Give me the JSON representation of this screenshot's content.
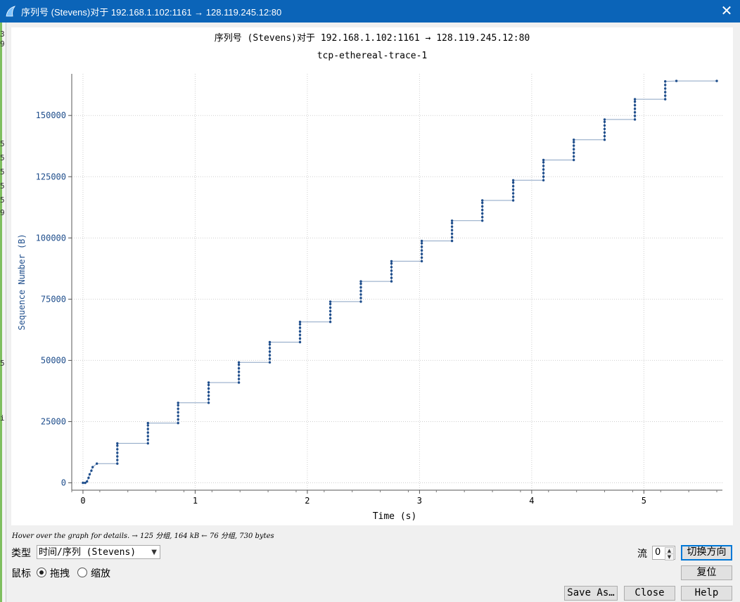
{
  "window": {
    "title": "序列号 (Stevens)对于 192.168.1.102:1161 → 128.119.245.12:80",
    "close_glyph": "✕"
  },
  "left_fragments": [
    "3",
    "9",
    "5",
    "5",
    "5",
    "5",
    "5",
    "9",
    "5",
    "i"
  ],
  "chart_data": {
    "type": "scatter",
    "title": "序列号 (Stevens)对于 192.168.1.102:1161 → 128.119.245.12:80",
    "subtitle": "tcp-ethereal-trace-1",
    "xlabel": "Time (s)",
    "ylabel": "Sequence Number (B)",
    "xlim": [
      -0.1,
      5.7
    ],
    "ylim": [
      -3000,
      167000
    ],
    "xticks": [
      0,
      1,
      2,
      3,
      4,
      5
    ],
    "yticks": [
      0,
      25000,
      50000,
      75000,
      100000,
      125000,
      150000
    ],
    "grid": true,
    "series": [
      {
        "style": "stevens",
        "color": "#1f4e8c",
        "points": [
          [
            0.0,
            0
          ],
          [
            0.02,
            0
          ],
          [
            0.036,
            565
          ],
          [
            0.05,
            2026
          ],
          [
            0.06,
            3486
          ],
          [
            0.075,
            4946
          ],
          [
            0.086,
            6406
          ],
          [
            0.124,
            7866
          ],
          [
            0.306,
            7866
          ],
          [
            0.306,
            9326
          ],
          [
            0.306,
            10786
          ],
          [
            0.306,
            12246
          ],
          [
            0.306,
            13706
          ],
          [
            0.306,
            15166
          ],
          [
            0.306,
            16134
          ],
          [
            0.579,
            16134
          ],
          [
            0.579,
            17594
          ],
          [
            0.579,
            19054
          ],
          [
            0.579,
            20514
          ],
          [
            0.579,
            21974
          ],
          [
            0.579,
            23434
          ],
          [
            0.579,
            24398
          ],
          [
            0.848,
            24398
          ],
          [
            0.848,
            25858
          ],
          [
            0.848,
            27318
          ],
          [
            0.848,
            28778
          ],
          [
            0.848,
            30238
          ],
          [
            0.848,
            31698
          ],
          [
            0.848,
            32662
          ],
          [
            1.12,
            32662
          ],
          [
            1.12,
            34122
          ],
          [
            1.12,
            35582
          ],
          [
            1.12,
            37042
          ],
          [
            1.12,
            38502
          ],
          [
            1.12,
            39962
          ],
          [
            1.12,
            40926
          ],
          [
            1.39,
            40926
          ],
          [
            1.39,
            42386
          ],
          [
            1.39,
            43846
          ],
          [
            1.39,
            45306
          ],
          [
            1.39,
            46766
          ],
          [
            1.39,
            48226
          ],
          [
            1.39,
            49190
          ],
          [
            1.665,
            49190
          ],
          [
            1.665,
            50650
          ],
          [
            1.665,
            52110
          ],
          [
            1.665,
            53570
          ],
          [
            1.665,
            55030
          ],
          [
            1.665,
            56490
          ],
          [
            1.665,
            57454
          ],
          [
            1.935,
            57454
          ],
          [
            1.935,
            58914
          ],
          [
            1.935,
            60374
          ],
          [
            1.935,
            61834
          ],
          [
            1.935,
            63294
          ],
          [
            1.935,
            64754
          ],
          [
            1.935,
            65718
          ],
          [
            2.205,
            65718
          ],
          [
            2.205,
            67178
          ],
          [
            2.205,
            68638
          ],
          [
            2.205,
            70098
          ],
          [
            2.205,
            71558
          ],
          [
            2.205,
            73018
          ],
          [
            2.205,
            73982
          ],
          [
            2.477,
            73982
          ],
          [
            2.477,
            75442
          ],
          [
            2.477,
            76902
          ],
          [
            2.477,
            78362
          ],
          [
            2.477,
            79822
          ],
          [
            2.477,
            81282
          ],
          [
            2.477,
            82246
          ],
          [
            2.75,
            82246
          ],
          [
            2.75,
            83706
          ],
          [
            2.75,
            85166
          ],
          [
            2.75,
            86626
          ],
          [
            2.75,
            88086
          ],
          [
            2.75,
            89546
          ],
          [
            2.75,
            90510
          ],
          [
            3.02,
            90510
          ],
          [
            3.02,
            91970
          ],
          [
            3.02,
            93430
          ],
          [
            3.02,
            94890
          ],
          [
            3.02,
            96350
          ],
          [
            3.02,
            97810
          ],
          [
            3.02,
            98774
          ],
          [
            3.29,
            98774
          ],
          [
            3.29,
            100234
          ],
          [
            3.29,
            101694
          ],
          [
            3.29,
            103154
          ],
          [
            3.29,
            104614
          ],
          [
            3.29,
            106074
          ],
          [
            3.29,
            107038
          ],
          [
            3.56,
            107038
          ],
          [
            3.56,
            108498
          ],
          [
            3.56,
            109958
          ],
          [
            3.56,
            111418
          ],
          [
            3.56,
            112878
          ],
          [
            3.56,
            114338
          ],
          [
            3.56,
            115302
          ],
          [
            3.835,
            115302
          ],
          [
            3.835,
            116762
          ],
          [
            3.835,
            118222
          ],
          [
            3.835,
            119682
          ],
          [
            3.835,
            121142
          ],
          [
            3.835,
            122602
          ],
          [
            3.835,
            123566
          ],
          [
            4.105,
            123566
          ],
          [
            4.105,
            125026
          ],
          [
            4.105,
            126486
          ],
          [
            4.105,
            127946
          ],
          [
            4.105,
            129406
          ],
          [
            4.105,
            130866
          ],
          [
            4.105,
            131830
          ],
          [
            4.375,
            131830
          ],
          [
            4.375,
            133290
          ],
          [
            4.375,
            134750
          ],
          [
            4.375,
            136210
          ],
          [
            4.375,
            137670
          ],
          [
            4.375,
            139130
          ],
          [
            4.375,
            140094
          ],
          [
            4.65,
            140094
          ],
          [
            4.65,
            141554
          ],
          [
            4.65,
            143014
          ],
          [
            4.65,
            144474
          ],
          [
            4.65,
            145934
          ],
          [
            4.65,
            147394
          ],
          [
            4.65,
            148358
          ],
          [
            4.92,
            148358
          ],
          [
            4.92,
            149818
          ],
          [
            4.92,
            151278
          ],
          [
            4.92,
            152738
          ],
          [
            4.92,
            154198
          ],
          [
            4.92,
            155658
          ],
          [
            4.92,
            156622
          ],
          [
            5.19,
            156622
          ],
          [
            5.19,
            158082
          ],
          [
            5.19,
            159542
          ],
          [
            5.19,
            161002
          ],
          [
            5.19,
            162462
          ],
          [
            5.19,
            163922
          ],
          [
            5.29,
            164091
          ],
          [
            5.65,
            164091
          ]
        ]
      }
    ]
  },
  "footer": {
    "hint": "Hover over the graph for details. → 125 分组, 164 kB ← 76 分组, 730 bytes",
    "type_label": "类型",
    "type_value": "时间/序列 (Stevens)",
    "mouse_label": "鼠标",
    "drag_label": "拖拽",
    "zoom_label": "缩放",
    "stream_label": "流",
    "stream_value": "0",
    "switch_direction": "切换方向",
    "reset": "复位",
    "save_as": "Save As…",
    "close": "Close",
    "help": "Help"
  }
}
